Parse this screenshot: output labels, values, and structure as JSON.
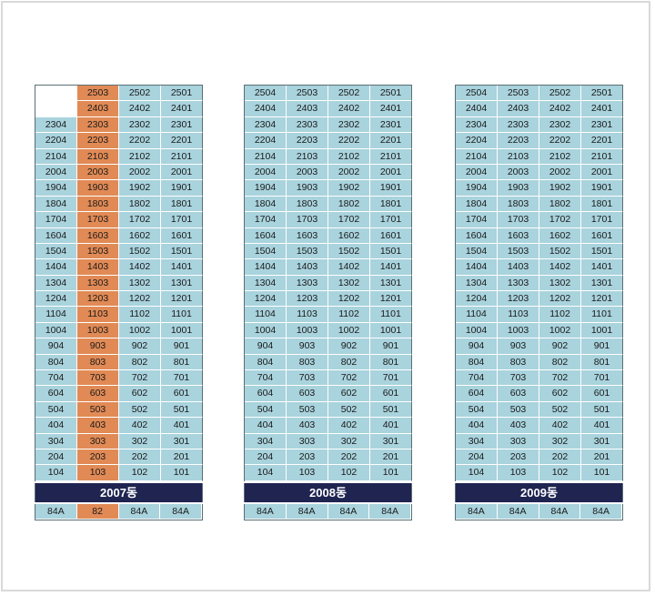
{
  "buildings": [
    {
      "name": "2007동",
      "highlight_column": 1,
      "rows": [
        [
          "",
          "2503",
          "2502",
          "2501"
        ],
        [
          "",
          "2403",
          "2402",
          "2401"
        ],
        [
          "2304",
          "2303",
          "2302",
          "2301"
        ],
        [
          "2204",
          "2203",
          "2202",
          "2201"
        ],
        [
          "2104",
          "2103",
          "2102",
          "2101"
        ],
        [
          "2004",
          "2003",
          "2002",
          "2001"
        ],
        [
          "1904",
          "1903",
          "1902",
          "1901"
        ],
        [
          "1804",
          "1803",
          "1802",
          "1801"
        ],
        [
          "1704",
          "1703",
          "1702",
          "1701"
        ],
        [
          "1604",
          "1603",
          "1602",
          "1601"
        ],
        [
          "1504",
          "1503",
          "1502",
          "1501"
        ],
        [
          "1404",
          "1403",
          "1402",
          "1401"
        ],
        [
          "1304",
          "1303",
          "1302",
          "1301"
        ],
        [
          "1204",
          "1203",
          "1202",
          "1201"
        ],
        [
          "1104",
          "1103",
          "1102",
          "1101"
        ],
        [
          "1004",
          "1003",
          "1002",
          "1001"
        ],
        [
          "904",
          "903",
          "902",
          "901"
        ],
        [
          "804",
          "803",
          "802",
          "801"
        ],
        [
          "704",
          "703",
          "702",
          "701"
        ],
        [
          "604",
          "603",
          "602",
          "601"
        ],
        [
          "504",
          "503",
          "502",
          "501"
        ],
        [
          "404",
          "403",
          "402",
          "401"
        ],
        [
          "304",
          "303",
          "302",
          "301"
        ],
        [
          "204",
          "203",
          "202",
          "201"
        ],
        [
          "104",
          "103",
          "102",
          "101"
        ]
      ],
      "types": [
        "84A",
        "82",
        "84A",
        "84A"
      ]
    },
    {
      "name": "2008동",
      "highlight_column": -1,
      "rows": [
        [
          "2504",
          "2503",
          "2502",
          "2501"
        ],
        [
          "2404",
          "2403",
          "2402",
          "2401"
        ],
        [
          "2304",
          "2303",
          "2302",
          "2301"
        ],
        [
          "2204",
          "2203",
          "2202",
          "2201"
        ],
        [
          "2104",
          "2103",
          "2102",
          "2101"
        ],
        [
          "2004",
          "2003",
          "2002",
          "2001"
        ],
        [
          "1904",
          "1903",
          "1902",
          "1901"
        ],
        [
          "1804",
          "1803",
          "1802",
          "1801"
        ],
        [
          "1704",
          "1703",
          "1702",
          "1701"
        ],
        [
          "1604",
          "1603",
          "1602",
          "1601"
        ],
        [
          "1504",
          "1503",
          "1502",
          "1501"
        ],
        [
          "1404",
          "1403",
          "1402",
          "1401"
        ],
        [
          "1304",
          "1303",
          "1302",
          "1301"
        ],
        [
          "1204",
          "1203",
          "1202",
          "1201"
        ],
        [
          "1104",
          "1103",
          "1102",
          "1101"
        ],
        [
          "1004",
          "1003",
          "1002",
          "1001"
        ],
        [
          "904",
          "903",
          "902",
          "901"
        ],
        [
          "804",
          "803",
          "802",
          "801"
        ],
        [
          "704",
          "703",
          "702",
          "701"
        ],
        [
          "604",
          "603",
          "602",
          "601"
        ],
        [
          "504",
          "503",
          "502",
          "501"
        ],
        [
          "404",
          "403",
          "402",
          "401"
        ],
        [
          "304",
          "303",
          "302",
          "301"
        ],
        [
          "204",
          "203",
          "202",
          "201"
        ],
        [
          "104",
          "103",
          "102",
          "101"
        ]
      ],
      "types": [
        "84A",
        "84A",
        "84A",
        "84A"
      ]
    },
    {
      "name": "2009동",
      "highlight_column": -1,
      "rows": [
        [
          "2504",
          "2503",
          "2502",
          "2501"
        ],
        [
          "2404",
          "2403",
          "2402",
          "2401"
        ],
        [
          "2304",
          "2303",
          "2302",
          "2301"
        ],
        [
          "2204",
          "2203",
          "2202",
          "2201"
        ],
        [
          "2104",
          "2103",
          "2102",
          "2101"
        ],
        [
          "2004",
          "2003",
          "2002",
          "2001"
        ],
        [
          "1904",
          "1903",
          "1902",
          "1901"
        ],
        [
          "1804",
          "1803",
          "1802",
          "1801"
        ],
        [
          "1704",
          "1703",
          "1702",
          "1701"
        ],
        [
          "1604",
          "1603",
          "1602",
          "1601"
        ],
        [
          "1504",
          "1503",
          "1502",
          "1501"
        ],
        [
          "1404",
          "1403",
          "1402",
          "1401"
        ],
        [
          "1304",
          "1303",
          "1302",
          "1301"
        ],
        [
          "1204",
          "1203",
          "1202",
          "1201"
        ],
        [
          "1104",
          "1103",
          "1102",
          "1101"
        ],
        [
          "1004",
          "1003",
          "1002",
          "1001"
        ],
        [
          "904",
          "903",
          "902",
          "901"
        ],
        [
          "804",
          "803",
          "802",
          "801"
        ],
        [
          "704",
          "703",
          "702",
          "701"
        ],
        [
          "604",
          "603",
          "602",
          "601"
        ],
        [
          "504",
          "503",
          "502",
          "501"
        ],
        [
          "404",
          "403",
          "402",
          "401"
        ],
        [
          "304",
          "303",
          "302",
          "301"
        ],
        [
          "204",
          "203",
          "202",
          "201"
        ],
        [
          "104",
          "103",
          "102",
          "101"
        ]
      ],
      "types": [
        "84A",
        "84A",
        "84A",
        "84A"
      ]
    }
  ],
  "colors": {
    "cell": "#a9d3dd",
    "highlight": "#e18a55",
    "label_bg": "#1f2451",
    "label_text": "#ffffff"
  }
}
